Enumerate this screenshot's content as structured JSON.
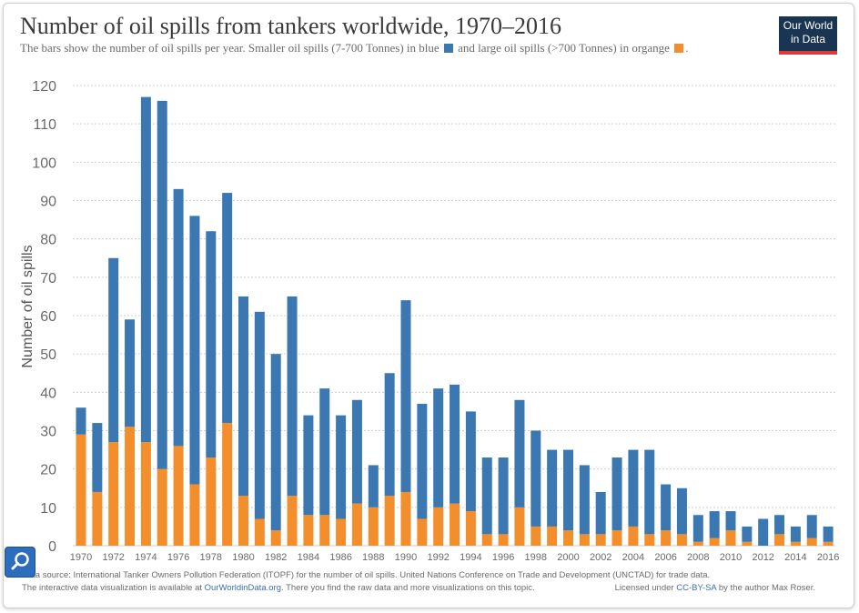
{
  "header": {
    "title": "Number of oil spills from tankers worldwide, 1970–2016",
    "subtitle_part1": "The bars show the number of oil spills per year.  Smaller oil spills (7-700 Tonnes) in blue",
    "subtitle_part2": "and large oil spills (>700 Tonnes) in organge",
    "subtitle_part3": "."
  },
  "logo": {
    "line1": "Our World",
    "line2": "in Data",
    "bg": "#1a3552",
    "accent": "#e03a3a"
  },
  "colors": {
    "small": "#3b78b2",
    "large": "#f28e2b",
    "grid": "#cfcfcf"
  },
  "chart_data": {
    "type": "bar",
    "stacked": true,
    "ylabel": "Number of oil spills",
    "ylim": [
      0,
      120
    ],
    "yticks": [
      0,
      10,
      20,
      30,
      40,
      50,
      60,
      70,
      80,
      90,
      100,
      110,
      120
    ],
    "grid": true,
    "categories": [
      1970,
      1971,
      1972,
      1973,
      1974,
      1975,
      1976,
      1977,
      1978,
      1979,
      1980,
      1981,
      1982,
      1983,
      1984,
      1985,
      1986,
      1987,
      1988,
      1989,
      1990,
      1991,
      1992,
      1993,
      1994,
      1995,
      1996,
      1997,
      1998,
      1999,
      2000,
      2001,
      2002,
      2003,
      2004,
      2005,
      2006,
      2007,
      2008,
      2009,
      2010,
      2011,
      2012,
      2013,
      2014,
      2015,
      2016
    ],
    "xtick_labels": [
      "1970",
      "1972",
      "1974",
      "1976",
      "1978",
      "1980",
      "1982",
      "1984",
      "1986",
      "1988",
      "1990",
      "1992",
      "1994",
      "1996",
      "1998",
      "2000",
      "2002",
      "2004",
      "2006",
      "2008",
      "2010",
      "2012",
      "2014",
      "2016"
    ],
    "series": [
      {
        "name": "large oil spills (>700 Tonnes)",
        "color": "#f28e2b",
        "values": [
          29,
          14,
          27,
          31,
          27,
          20,
          26,
          16,
          23,
          32,
          13,
          7,
          4,
          13,
          8,
          8,
          7,
          11,
          10,
          13,
          14,
          7,
          10,
          11,
          9,
          3,
          3,
          10,
          5,
          5,
          4,
          3,
          3,
          4,
          5,
          3,
          4,
          3,
          1,
          2,
          4,
          1,
          0,
          3,
          1,
          2,
          1
        ]
      },
      {
        "name": "smaller oil spills (7-700 Tonnes)",
        "color": "#3b78b2",
        "values": [
          7,
          18,
          48,
          28,
          90,
          96,
          67,
          70,
          59,
          60,
          52,
          54,
          46,
          52,
          26,
          33,
          27,
          27,
          11,
          32,
          50,
          30,
          31,
          31,
          26,
          20,
          20,
          28,
          25,
          20,
          21,
          18,
          11,
          19,
          20,
          22,
          12,
          12,
          7,
          7,
          5,
          4,
          7,
          5,
          4,
          6,
          4
        ]
      }
    ]
  },
  "footer": {
    "line1": "Data source: International Tanker Owners Pollution Federation (ITOPF) for the number of oil spills. United Nations Conference on Trade and Development (UNCTAD) for trade data.",
    "line2a": "The interactive data visualization is available at ",
    "line2_link": "OurWorldinData.org",
    "line2b": ". There you find the raw data and more visualizations on this topic.",
    "license_a": "Licensed under ",
    "license_link": "CC-BY-SA",
    "license_b": " by the author Max Roser."
  }
}
